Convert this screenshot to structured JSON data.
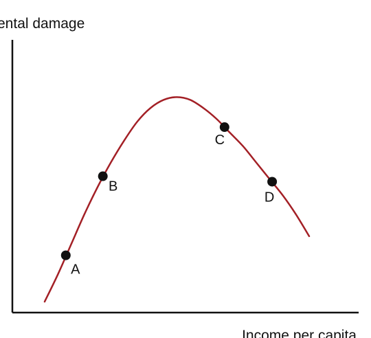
{
  "chart_data": {
    "type": "line",
    "ylabel": "ental damage",
    "xlabel": "Income per capita",
    "grid": false,
    "legend": "none",
    "curve_color": "#a32026",
    "axis_color": "#111111",
    "point_color": "#111111",
    "curve": {
      "x": [
        0.0,
        0.05,
        0.1,
        0.15,
        0.2,
        0.25,
        0.3,
        0.35,
        0.4,
        0.45,
        0.5,
        0.55,
        0.6,
        0.65,
        0.7,
        0.75,
        0.8,
        0.85,
        0.9,
        0.95,
        1.0
      ],
      "y": [
        0.04,
        0.14,
        0.25,
        0.36,
        0.46,
        0.55,
        0.63,
        0.7,
        0.75,
        0.78,
        0.79,
        0.78,
        0.75,
        0.71,
        0.66,
        0.61,
        0.55,
        0.49,
        0.43,
        0.36,
        0.28
      ]
    },
    "points": [
      {
        "label": "A",
        "x": 0.08,
        "y": 0.21
      },
      {
        "label": "B",
        "x": 0.22,
        "y": 0.5
      },
      {
        "label": "C",
        "x": 0.68,
        "y": 0.68
      },
      {
        "label": "D",
        "x": 0.86,
        "y": 0.48
      }
    ]
  }
}
